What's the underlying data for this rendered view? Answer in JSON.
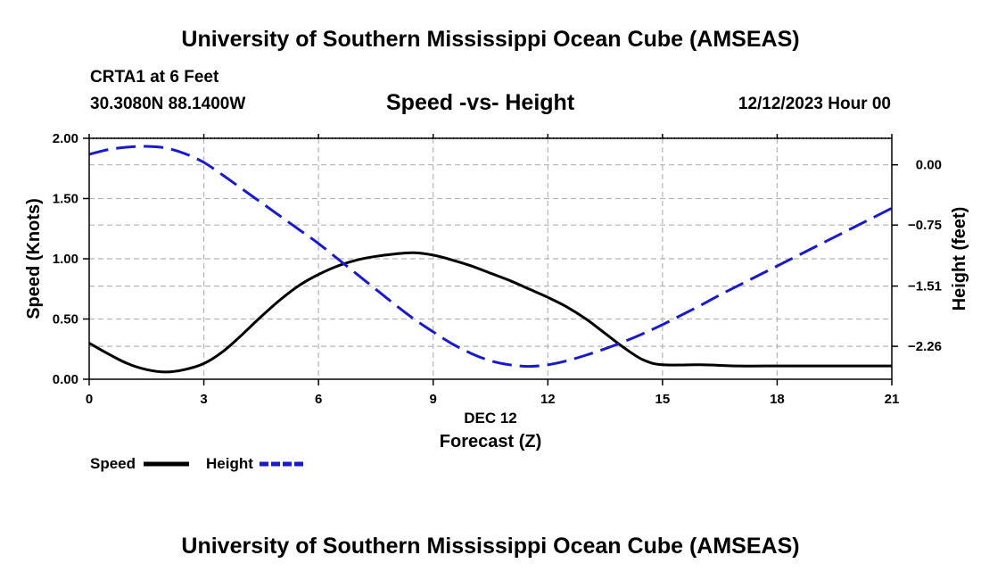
{
  "header": {
    "title": "University of Southern Mississippi Ocean Cube (AMSEAS)",
    "station": "CRTA1 at 6 Feet",
    "coords": "30.3080N  88.1400W",
    "subtitle": "Speed -vs- Height",
    "datestamp": "12/12/2023 Hour 00"
  },
  "footer": {
    "title": "University of Southern Mississippi Ocean Cube (AMSEAS)"
  },
  "chart_data": {
    "type": "line",
    "title": "Speed -vs- Height",
    "xlabel": "Forecast (Z)",
    "xlabel_date": "DEC 12",
    "ylabel": "Speed (Knots)",
    "y2label": "Height (feet)",
    "xlim": [
      0,
      21
    ],
    "ylim": [
      0,
      2.0
    ],
    "y2lim": [
      -2.67,
      0.33
    ],
    "x_ticks": [
      "0",
      "3",
      "6",
      "9",
      "12",
      "15",
      "18",
      "21"
    ],
    "y_ticks": [
      "0.00",
      "0.50",
      "1.00",
      "1.50",
      "2.00"
    ],
    "y2_ticks": [
      "0.00",
      "-0.75",
      "-1.51",
      "-2.26"
    ],
    "grid": true,
    "legend_position": "bottom-left",
    "series": [
      {
        "name": "Speed",
        "axis": "left",
        "color": "#000000",
        "dash": "solid",
        "x": [
          0,
          0.5,
          1,
          1.5,
          2,
          2.5,
          3,
          3.5,
          4,
          4.5,
          5,
          5.5,
          6,
          6.5,
          7,
          7.5,
          8,
          8.5,
          9,
          9.5,
          10,
          10.5,
          11,
          11.5,
          12,
          12.5,
          13,
          13.5,
          14,
          14.5,
          15,
          16,
          17,
          18,
          19,
          20,
          21
        ],
        "values": [
          0.3,
          0.21,
          0.13,
          0.08,
          0.06,
          0.08,
          0.13,
          0.23,
          0.37,
          0.52,
          0.66,
          0.78,
          0.87,
          0.94,
          0.99,
          1.02,
          1.04,
          1.05,
          1.03,
          0.99,
          0.94,
          0.88,
          0.82,
          0.75,
          0.68,
          0.6,
          0.5,
          0.38,
          0.26,
          0.16,
          0.12,
          0.12,
          0.11,
          0.11,
          0.11,
          0.11,
          0.11
        ]
      },
      {
        "name": "Height",
        "axis": "right",
        "color": "#1a1acd",
        "dash": "dashed",
        "x": [
          0,
          0.5,
          1,
          1.5,
          2,
          2.5,
          3,
          3.5,
          4,
          4.5,
          5,
          5.5,
          6,
          6.5,
          7,
          7.5,
          8,
          8.5,
          9,
          9.5,
          10,
          10.5,
          11,
          11.5,
          12,
          12.5,
          13,
          13.5,
          14,
          14.5,
          15,
          15.5,
          16,
          16.5,
          17,
          17.5,
          18,
          18.5,
          19,
          19.5,
          20,
          20.5,
          21
        ],
        "values": [
          0.13,
          0.19,
          0.22,
          0.23,
          0.21,
          0.14,
          0.03,
          -0.13,
          -0.3,
          -0.47,
          -0.64,
          -0.81,
          -0.98,
          -1.17,
          -1.36,
          -1.55,
          -1.74,
          -1.92,
          -2.08,
          -2.23,
          -2.35,
          -2.44,
          -2.49,
          -2.51,
          -2.49,
          -2.44,
          -2.37,
          -2.29,
          -2.2,
          -2.1,
          -1.99,
          -1.87,
          -1.75,
          -1.62,
          -1.5,
          -1.38,
          -1.26,
          -1.14,
          -1.02,
          -0.9,
          -0.78,
          -0.66,
          -0.54
        ]
      }
    ]
  }
}
